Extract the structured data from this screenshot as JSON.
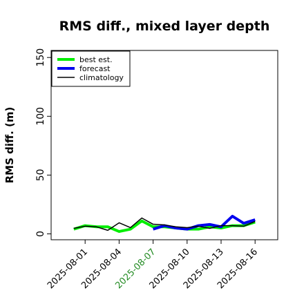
{
  "chart_data": {
    "type": "line",
    "title": "RMS diff., mixed layer depth",
    "ylabel": "RMS diff. (m)",
    "x": [
      "2025-07-31",
      "2025-08-01",
      "2025-08-02",
      "2025-08-03",
      "2025-08-04",
      "2025-08-05",
      "2025-08-06",
      "2025-08-07",
      "2025-08-08",
      "2025-08-09",
      "2025-08-10",
      "2025-08-11",
      "2025-08-12",
      "2025-08-13",
      "2025-08-14",
      "2025-08-15",
      "2025-08-16"
    ],
    "series": [
      {
        "name": "best est.",
        "color": "#00ee00",
        "width": 4,
        "values": [
          4,
          7,
          6,
          6,
          2,
          4,
          11,
          6,
          6,
          5,
          4,
          4,
          6,
          5,
          7,
          7,
          10
        ]
      },
      {
        "name": "forecast",
        "color": "#0000ee",
        "width": 4,
        "values": [
          null,
          null,
          null,
          null,
          null,
          null,
          null,
          4,
          7,
          5,
          4,
          7,
          8,
          6,
          15,
          9,
          12
        ]
      },
      {
        "name": "climatology",
        "color": "#000000",
        "width": 1.5,
        "values": [
          4.7,
          6.5,
          6,
          3,
          9.4,
          5.3,
          13.5,
          8.2,
          7.6,
          6,
          5.3,
          6.5,
          4.7,
          7,
          7,
          6.5,
          10.6
        ]
      }
    ],
    "xlim": [
      "2025-07-29",
      "2025-08-18"
    ],
    "xticks": [
      "2025-08-01",
      "2025-08-04",
      "2025-08-07",
      "2025-08-10",
      "2025-08-13",
      "2025-08-16"
    ],
    "xtick_colors": [
      "#000000",
      "#000000",
      "#228b22",
      "#000000",
      "#000000",
      "#000000"
    ],
    "ylim": [
      -5,
      156
    ],
    "yticks": [
      0,
      50,
      100,
      150
    ],
    "legend": "upper left"
  }
}
